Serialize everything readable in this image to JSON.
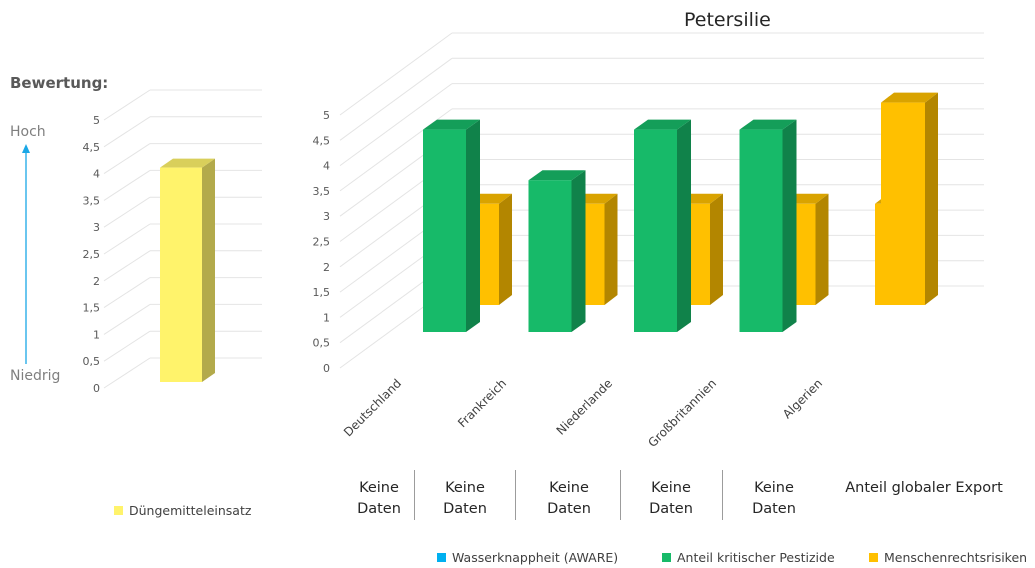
{
  "left_header": "Bewertung:",
  "scale_high": "Hoch",
  "scale_low": "Niedrig",
  "table": {
    "cells": [
      "Keine\nDaten",
      "Keine\nDaten",
      "Keine\nDaten",
      "Keine\nDaten",
      "Keine\nDaten"
    ],
    "last": "Anteil globaler Export"
  },
  "chart_data": [
    {
      "type": "bar",
      "categories": [
        ""
      ],
      "series": [
        {
          "name": "Düngemitteleinsatz",
          "values": [
            4
          ],
          "color": "#FFF36B"
        }
      ],
      "ylim": [
        0,
        5
      ],
      "yticks": [
        "0",
        "0,5",
        "1",
        "1,5",
        "2",
        "2,5",
        "3",
        "3,5",
        "4",
        "4,5",
        "5"
      ],
      "legend": "bottom"
    },
    {
      "type": "bar",
      "title": "Petersilie",
      "categories": [
        "Deutschland",
        "Frankreich",
        "Niederlande",
        "Großbritannien",
        "Algerien",
        ""
      ],
      "series": [
        {
          "name": "Wasserknappheit (AWARE)",
          "values": [
            null,
            null,
            null,
            null,
            null,
            null
          ],
          "color": "#00B0F0"
        },
        {
          "name": "Anteil kritischer Pestizide",
          "values": [
            4.5,
            3.5,
            4.5,
            4.5,
            null,
            null
          ],
          "color": "#17BA69"
        },
        {
          "name": "Menschenrechtsrisiken",
          "values": [
            3,
            3,
            3,
            3,
            3,
            5
          ],
          "color": "#FFC000"
        }
      ],
      "ylim": [
        0,
        5
      ],
      "yticks": [
        "0",
        "0,5",
        "1",
        "1,5",
        "2",
        "2,5",
        "3",
        "3,5",
        "4",
        "4,5",
        "5"
      ],
      "legend": "bottom"
    }
  ]
}
